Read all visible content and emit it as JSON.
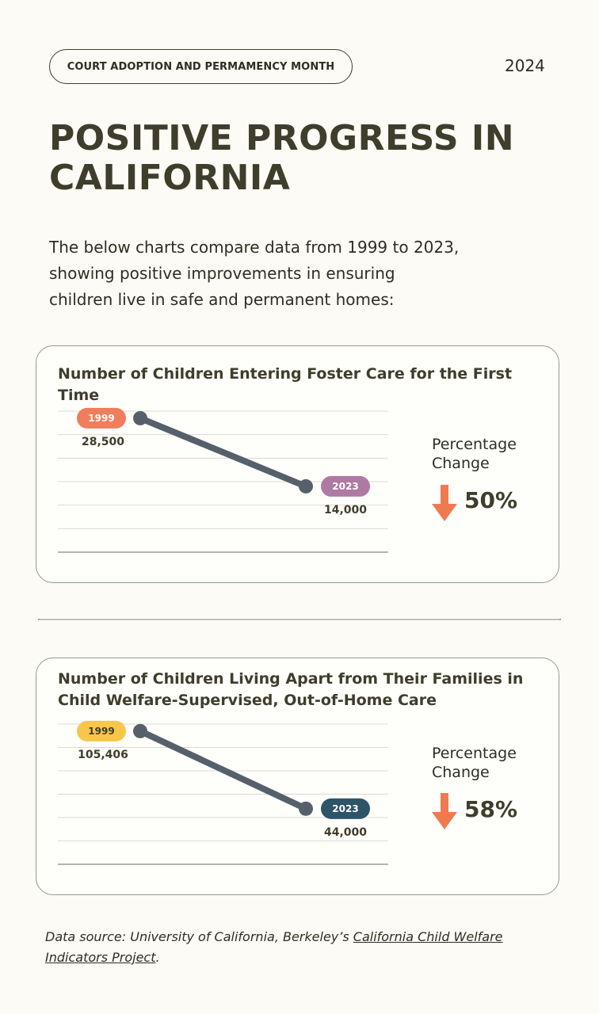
{
  "header": {
    "pill_label": "COURT ADOPTION AND PERMAMENCY MONTH",
    "year": "2024"
  },
  "title": "POSITIVE PROGRESS IN CALIFORNIA",
  "intro": "The below charts compare data from 1999 to 2023, showing positive improvements in ensuring children live in safe and permanent homes:",
  "colors": {
    "line": "#56606a",
    "arrow": "#f07a50",
    "tag_1999_a": "#f07d5b",
    "tag_2023_a": "#ae7aa3",
    "tag_1999_b": "#f7c64a",
    "tag_2023_b": "#2d5468"
  },
  "chart_data": [
    {
      "type": "line",
      "title": "Number of Children Entering Foster Care for the First Time",
      "x": [
        "1999",
        "2023"
      ],
      "values": [
        28500,
        14000
      ],
      "value_labels": [
        "28,500",
        "14,000"
      ],
      "ylim": [
        0,
        30000
      ],
      "grid": true,
      "change_label": "Percentage Change",
      "change_value": "50%",
      "change_direction": "down"
    },
    {
      "type": "line",
      "title": "Number of Children Living Apart from Their Families in Child Welfare-Supervised, Out-of-Home Care",
      "x": [
        "1999",
        "2023"
      ],
      "values": [
        105406,
        44000
      ],
      "value_labels": [
        "105,406",
        "44,000"
      ],
      "ylim": [
        0,
        111000
      ],
      "grid": true,
      "change_label": "Percentage Change",
      "change_value": "58%",
      "change_direction": "down"
    }
  ],
  "source": {
    "prefix": "Data source: University of California, Berkeley’s ",
    "link_text": "California Child Welfare Indicators Project",
    "suffix": "."
  }
}
